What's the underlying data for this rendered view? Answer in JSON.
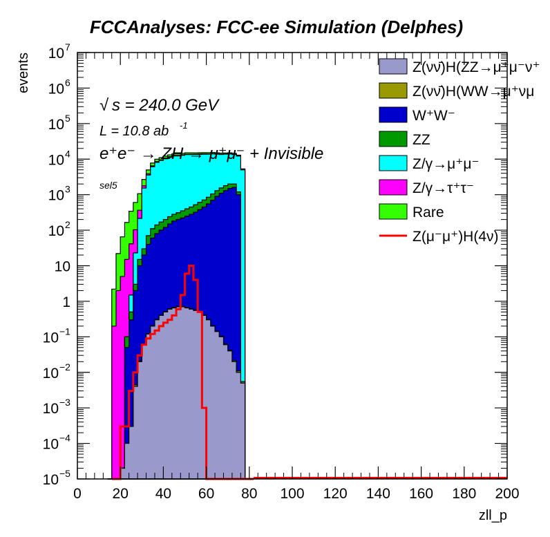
{
  "chart_data": {
    "type": "histogram-stacked-log",
    "title": "FCCAnalyses: FCC-ee Simulation (Delphes)",
    "xlabel": "zll_p",
    "ylabel": "events",
    "xlim": [
      0,
      200
    ],
    "ylim": [
      1e-05,
      10000000
    ],
    "log_y": true,
    "grid": false,
    "legend_position": "top-right",
    "x_ticks": [
      "0",
      "20",
      "40",
      "60",
      "80",
      "100",
      "120",
      "140",
      "160",
      "180",
      "200"
    ],
    "y_ticks": [
      {
        "base": "10",
        "exp": "7",
        "value": 10000000
      },
      {
        "base": "10",
        "exp": "6",
        "value": 1000000
      },
      {
        "base": "10",
        "exp": "5",
        "value": 100000
      },
      {
        "base": "10",
        "exp": "4",
        "value": 10000
      },
      {
        "base": "10",
        "exp": "3",
        "value": 1000
      },
      {
        "base": "10",
        "exp": "2",
        "value": 100
      },
      {
        "base": "10",
        "exp": "",
        "value": 10
      },
      {
        "base": "1",
        "exp": "",
        "value": 1
      },
      {
        "base": "10",
        "exp": "−1",
        "value": 0.1
      },
      {
        "base": "10",
        "exp": "−2",
        "value": 0.01
      },
      {
        "base": "10",
        "exp": "−3",
        "value": 0.001
      },
      {
        "base": "10",
        "exp": "−4",
        "value": 0.0001
      },
      {
        "base": "10",
        "exp": "−5",
        "value": 1e-05
      }
    ],
    "annotations": {
      "sqrt_s_symbol": "√",
      "sqrt_s_text": "s = 240.0 GeV",
      "lumi_text": "L = 10.8 ab",
      "lumi_exp": "-1",
      "process_text": "e⁺e⁻ → ZH → μ⁺μ⁻ + Invisible",
      "selection": "sel5"
    },
    "x": [
      14,
      16,
      18,
      20,
      22,
      24,
      26,
      28,
      30,
      32,
      34,
      36,
      38,
      40,
      42,
      44,
      46,
      48,
      50,
      52,
      54,
      56,
      58,
      60,
      62,
      64,
      66,
      68,
      70,
      72,
      74,
      76,
      78,
      80
    ],
    "series": [
      {
        "name": "Z(νν̄)H(ZZ→μ⁺μ⁻ν⁺",
        "color": "#9999cc",
        "values": [
          0,
          0,
          0,
          2e-05,
          0.0001,
          0.0003,
          0.004,
          0.02,
          0.06,
          0.12,
          0.2,
          0.3,
          0.4,
          0.5,
          0.6,
          0.65,
          0.7,
          0.7,
          0.65,
          0.6,
          0.55,
          0.5,
          0.4,
          0.3,
          0.2,
          0.14,
          0.1,
          0.06,
          0.04,
          0.02,
          0.01,
          0.005,
          0,
          0
        ]
      },
      {
        "name": "Z(νν̄)H(WW→μ⁺νμ",
        "color": "#999900",
        "values": [
          0,
          0,
          0,
          0,
          0,
          0,
          0.0004,
          0.001,
          0.002,
          0.004,
          0.005,
          0.008,
          0.01,
          0.015,
          0.02,
          0.025,
          0.02,
          0.02,
          0.02,
          0.015,
          0.015,
          0.012,
          0.01,
          0.008,
          0.006,
          0.005,
          0.004,
          0.003,
          0.002,
          0.0015,
          0.001,
          0.0005,
          0,
          0
        ]
      },
      {
        "name": "W⁺W⁻",
        "color": "#0000cc",
        "values": [
          0,
          0,
          0,
          0,
          0.05,
          0.3,
          2,
          10,
          20,
          40,
          60,
          80,
          100,
          120,
          150,
          180,
          200,
          220,
          250,
          280,
          320,
          380,
          450,
          550,
          700,
          900,
          1100,
          1300,
          1500,
          1600,
          1000,
          0,
          0,
          0
        ]
      },
      {
        "name": "ZZ",
        "color": "#009900",
        "values": [
          0,
          0,
          0,
          0,
          0.05,
          0.2,
          1,
          5,
          10,
          30,
          50,
          60,
          70,
          80,
          90,
          100,
          110,
          130,
          150,
          170,
          200,
          230,
          260,
          300,
          350,
          400,
          450,
          500,
          500,
          400,
          200,
          0,
          0,
          0
        ]
      },
      {
        "name": "Z/γ→μ⁺μ⁻",
        "color": "#00ffff",
        "values": [
          0,
          0,
          0,
          0,
          0,
          1,
          20,
          200,
          1500,
          3500,
          6000,
          8000,
          9000,
          10000,
          11000,
          12000,
          12000,
          12500,
          13000,
          13000,
          13000,
          13000,
          13000,
          13000,
          13000,
          12500,
          12000,
          12000,
          12000,
          11500,
          11000,
          5000,
          0,
          0
        ]
      },
      {
        "name": "Z/γ→τ⁺τ⁻",
        "color": "#ff00ff",
        "values": [
          0,
          0.2,
          2,
          5,
          15,
          40,
          80,
          150,
          250,
          300,
          350,
          400,
          420,
          450,
          450,
          440,
          420,
          400,
          380,
          350,
          320,
          300,
          280,
          260,
          240,
          220,
          200,
          180,
          150,
          120,
          80,
          30,
          0,
          0
        ]
      },
      {
        "name": "Rare",
        "color": "#33ff00",
        "values": [
          0,
          2,
          20,
          60,
          150,
          300,
          500,
          700,
          900,
          1100,
          1300,
          1400,
          1450,
          1500,
          1500,
          1450,
          1400,
          1350,
          1300,
          1300,
          1250,
          1200,
          1200,
          1150,
          1100,
          1050,
          1000,
          950,
          900,
          850,
          700,
          300,
          0,
          0
        ]
      }
    ],
    "signal": {
      "name": "Z(μ⁻μ⁺)H(4ν)",
      "color": "#ff0000",
      "x": [
        16,
        18,
        20,
        22,
        24,
        26,
        28,
        30,
        32,
        34,
        36,
        38,
        40,
        42,
        44,
        46,
        48,
        50,
        52,
        54,
        56,
        58,
        60,
        62,
        64,
        66,
        68,
        70,
        72,
        74,
        76,
        78,
        80
      ],
      "values": [
        0,
        0,
        0.0003,
        0.0003,
        0.003,
        0.01,
        0.03,
        0.06,
        0.09,
        0.12,
        0.15,
        0.2,
        0.25,
        0.3,
        0.4,
        0.6,
        1.5,
        6,
        10,
        4,
        0.5,
        0.001,
        0,
        0,
        0,
        0,
        0,
        0,
        0,
        0,
        0,
        0,
        0
      ]
    },
    "legend_labels": [
      "Z(νν̄)H(ZZ→μ⁺μ⁻ν⁺",
      "Z(νν̄)H(WW→μ⁺νμ",
      "W⁺W⁻",
      "ZZ",
      "Z/γ→μ⁺μ⁻",
      "Z/γ→τ⁺τ⁻",
      "Rare",
      "Z(μ⁻μ⁺)H(4ν)"
    ]
  }
}
